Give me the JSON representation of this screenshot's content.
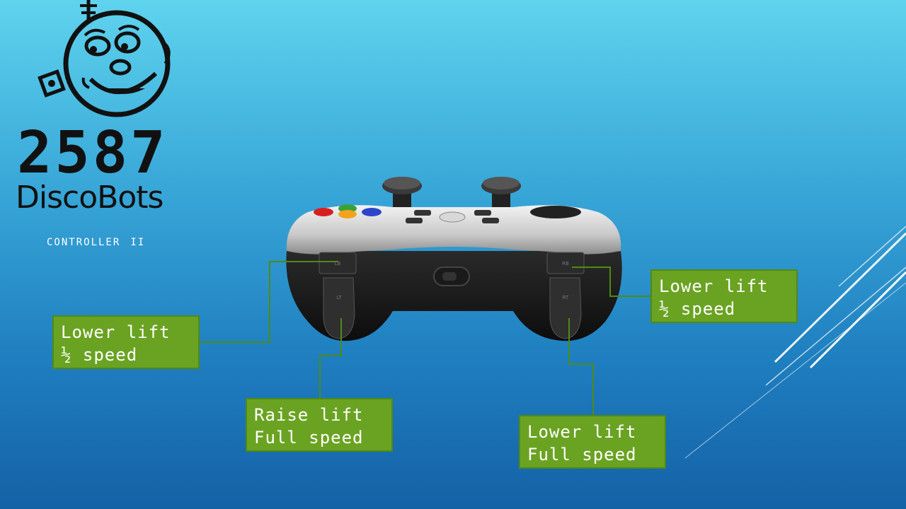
{
  "logo": {
    "team_number": "2587",
    "team_name": "DiscoBots"
  },
  "slide": {
    "subtitle": "Controller II"
  },
  "callouts": [
    {
      "id": "left-bumper",
      "line1": "Lower lift",
      "line2": "½ speed"
    },
    {
      "id": "left-trigger",
      "line1": "Raise lift",
      "line2": "Full speed"
    },
    {
      "id": "right-bumper",
      "line1": "Lower lift",
      "line2": "½ speed"
    },
    {
      "id": "right-trigger",
      "line1": "Lower lift",
      "line2": "Full speed"
    }
  ],
  "controller": {
    "left_bumper_label": "LB",
    "left_trigger_label": "LT",
    "right_bumper_label": "RB",
    "right_trigger_label": "RT"
  },
  "colors": {
    "callout_fill": "#6aa322",
    "callout_border": "#4f8a14",
    "connector_line": "#4f8a14",
    "background_top": "#5fd3ee",
    "background_bottom": "#1461a6"
  }
}
